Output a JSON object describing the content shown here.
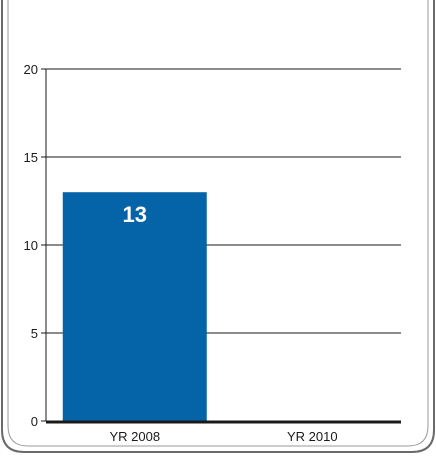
{
  "chart_data": {
    "type": "bar",
    "categories": [
      "YR 2008",
      "YR 2010"
    ],
    "values": [
      13,
      null
    ],
    "data_labels": [
      "13",
      ""
    ],
    "title": "",
    "xlabel": "",
    "ylabel": "",
    "ylim": [
      0,
      20
    ],
    "yticks": [
      0,
      5,
      10,
      15,
      20
    ],
    "ytick_labels": [
      "0",
      "5",
      "10",
      "15",
      "20"
    ],
    "grid": true,
    "legend": "none"
  },
  "colors": {
    "bar": "#0563a8",
    "grid": "#1a1a1a",
    "frame": "#6b6b6b",
    "text": "#1a1a1a",
    "data_label": "#ffffff"
  }
}
